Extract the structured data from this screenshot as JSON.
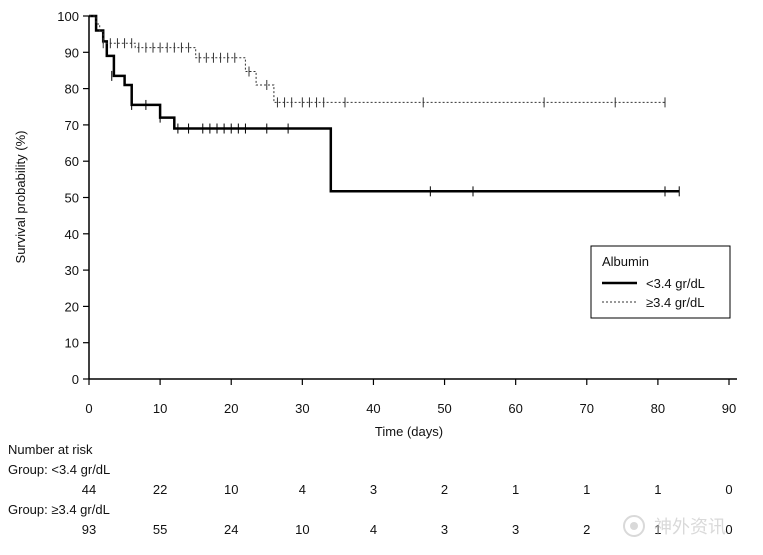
{
  "chart_data": {
    "type": "line",
    "subtype": "kaplan-meier",
    "xlabel": "Time (days)",
    "ylabel": "Survival probability (%)",
    "xlim": [
      0,
      90
    ],
    "ylim": [
      0,
      100
    ],
    "xticks": [
      0,
      10,
      20,
      30,
      40,
      50,
      60,
      70,
      80,
      90
    ],
    "yticks": [
      0,
      10,
      20,
      30,
      40,
      50,
      60,
      70,
      80,
      90,
      100
    ],
    "legend": {
      "title": "Albumin",
      "placement": "right",
      "entries": [
        "<3.4 gr/dL",
        "≥3.4 gr/dL"
      ]
    },
    "series": [
      {
        "name": "<3.4 gr/dL",
        "style": "solid",
        "color": "#000000",
        "steps": [
          [
            0,
            100
          ],
          [
            1,
            100
          ],
          [
            1,
            96
          ],
          [
            2,
            96
          ],
          [
            2,
            93
          ],
          [
            2.5,
            93
          ],
          [
            2.5,
            89
          ],
          [
            3.5,
            89
          ],
          [
            3.5,
            83.5
          ],
          [
            5,
            83.5
          ],
          [
            5,
            81
          ],
          [
            6,
            81
          ],
          [
            6,
            75.5
          ],
          [
            10,
            75.5
          ],
          [
            10,
            72
          ],
          [
            12,
            72
          ],
          [
            12,
            69
          ],
          [
            34,
            69
          ],
          [
            34,
            51.7
          ],
          [
            83,
            51.7
          ]
        ],
        "censored": [
          [
            3.2,
            83.5
          ],
          [
            6,
            75.5
          ],
          [
            8,
            75.5
          ],
          [
            10,
            72
          ],
          [
            12.5,
            69
          ],
          [
            14,
            69
          ],
          [
            16,
            69
          ],
          [
            17,
            69
          ],
          [
            18,
            69
          ],
          [
            19,
            69
          ],
          [
            20,
            69
          ],
          [
            21,
            69
          ],
          [
            22,
            69
          ],
          [
            25,
            69
          ],
          [
            28,
            69
          ],
          [
            48,
            51.7
          ],
          [
            54,
            51.7
          ],
          [
            81,
            51.7
          ],
          [
            83,
            51.7
          ]
        ]
      },
      {
        "name": "≥3.4 gr/dL",
        "style": "dotted",
        "color": "#333333",
        "steps": [
          [
            0,
            100
          ],
          [
            1,
            100
          ],
          [
            1,
            97.8
          ],
          [
            1.5,
            97.8
          ],
          [
            1.5,
            95.7
          ],
          [
            2,
            95.7
          ],
          [
            2,
            92.5
          ],
          [
            6.5,
            92.5
          ],
          [
            6.5,
            91.3
          ],
          [
            15,
            91.3
          ],
          [
            15,
            88.5
          ],
          [
            22,
            88.5
          ],
          [
            22,
            84.7
          ],
          [
            23.5,
            84.7
          ],
          [
            23.5,
            81
          ],
          [
            26,
            81
          ],
          [
            26,
            76.2
          ],
          [
            81,
            76.2
          ]
        ],
        "censored": [
          [
            2,
            92.5
          ],
          [
            3,
            92.5
          ],
          [
            4,
            92.5
          ],
          [
            5,
            92.5
          ],
          [
            6,
            92.5
          ],
          [
            7,
            91.3
          ],
          [
            8,
            91.3
          ],
          [
            9,
            91.3
          ],
          [
            10,
            91.3
          ],
          [
            11,
            91.3
          ],
          [
            12,
            91.3
          ],
          [
            13,
            91.3
          ],
          [
            14,
            91.3
          ],
          [
            15.5,
            88.5
          ],
          [
            16.5,
            88.5
          ],
          [
            17.5,
            88.5
          ],
          [
            18.5,
            88.5
          ],
          [
            19.5,
            88.5
          ],
          [
            20.5,
            88.5
          ],
          [
            22.5,
            84.7
          ],
          [
            25,
            81
          ],
          [
            26.5,
            76.2
          ],
          [
            27.5,
            76.2
          ],
          [
            28.5,
            76.2
          ],
          [
            30,
            76.2
          ],
          [
            31,
            76.2
          ],
          [
            32,
            76.2
          ],
          [
            33,
            76.2
          ],
          [
            36,
            76.2
          ],
          [
            47,
            76.2
          ],
          [
            64,
            76.2
          ],
          [
            74,
            76.2
          ],
          [
            81,
            76.2
          ]
        ]
      }
    ],
    "risk_table": {
      "header": "Number at risk",
      "times": [
        0,
        10,
        20,
        30,
        40,
        50,
        60,
        70,
        80,
        90
      ],
      "groups": [
        {
          "label": "Group: <3.4 gr/dL",
          "values": [
            44,
            22,
            10,
            4,
            3,
            2,
            1,
            1,
            1,
            0
          ]
        },
        {
          "label": "Group: ≥3.4 gr/dL",
          "values": [
            93,
            55,
            24,
            10,
            4,
            3,
            3,
            2,
            1,
            0
          ]
        }
      ]
    }
  },
  "watermark_text": "神外资讯"
}
